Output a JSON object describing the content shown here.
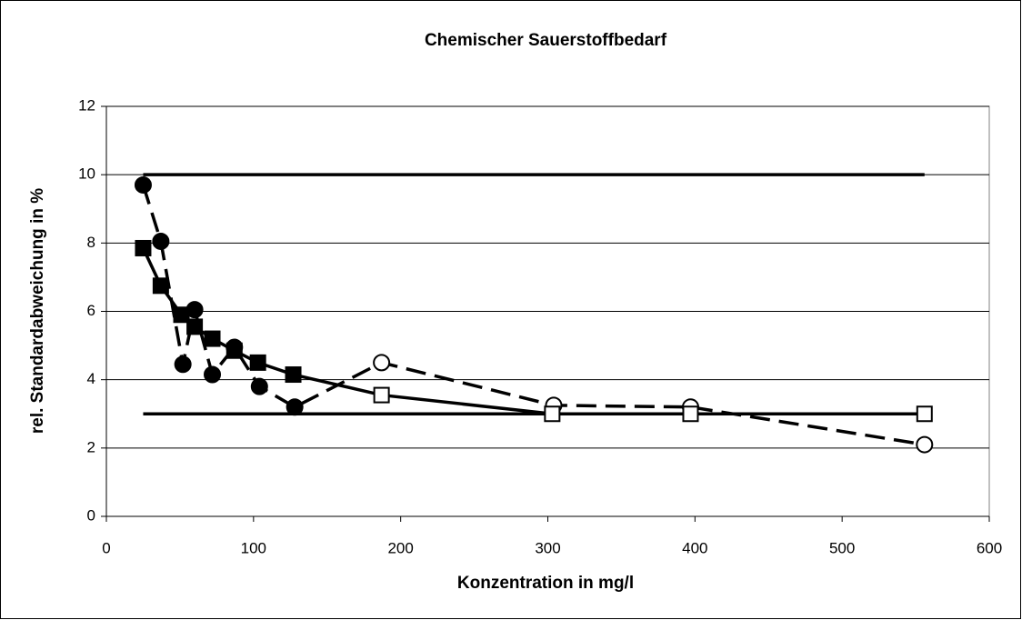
{
  "chart_data": {
    "type": "line",
    "title": "Chemischer Sauerstoffbedarf",
    "x_label": "Konzentration in mg/l",
    "y_label": "rel. Standardabweichung in %",
    "xlim": [
      0,
      600
    ],
    "xticks": [
      0,
      100,
      200,
      300,
      400,
      500,
      600
    ],
    "ylim": [
      0,
      12
    ],
    "yticks": [
      0,
      2,
      4,
      6,
      8,
      10,
      12
    ],
    "grid": true,
    "series": [
      {
        "color": "#000000",
        "dash": true,
        "marker": "circle",
        "x": [
          25,
          37,
          52,
          60,
          72,
          87,
          104,
          128,
          187,
          304,
          397,
          556
        ],
        "values": [
          9.7,
          8.05,
          4.45,
          6.05,
          4.15,
          4.95,
          3.8,
          3.2,
          4.5,
          3.25,
          3.2,
          2.1
        ],
        "filled": [
          true,
          true,
          true,
          true,
          true,
          true,
          true,
          true,
          false,
          false,
          false,
          false
        ]
      },
      {
        "color": "#000000",
        "dash": false,
        "marker": "square",
        "x": [
          25,
          37,
          51,
          60,
          72,
          87,
          103,
          127,
          187,
          303,
          397,
          556
        ],
        "values": [
          7.85,
          6.75,
          5.9,
          5.55,
          5.2,
          4.85,
          4.5,
          4.15,
          3.55,
          3.0,
          3.0,
          3.0
        ],
        "filled": [
          true,
          true,
          true,
          true,
          true,
          true,
          true,
          true,
          false,
          false,
          false,
          false
        ]
      },
      {
        "color": "#000000",
        "dash": false,
        "marker": "none",
        "x": [
          25,
          556
        ],
        "values": [
          10,
          10
        ]
      },
      {
        "color": "#000000",
        "dash": false,
        "marker": "none",
        "x": [
          25,
          556
        ],
        "values": [
          3,
          3
        ]
      }
    ]
  }
}
